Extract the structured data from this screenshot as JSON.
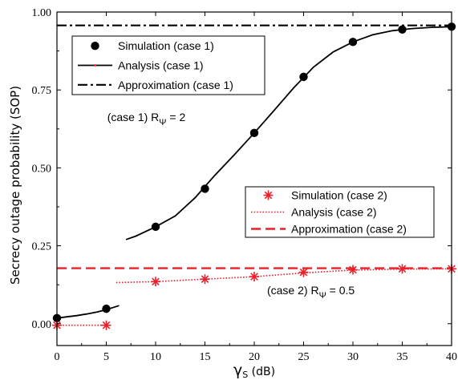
{
  "chart_data": {
    "type": "line",
    "xlabel": "γ",
    "xlabel_sub": "S",
    "xlabel_unit": " (dB)",
    "ylabel": "Secrecy outage probability (SOP)",
    "xlim": [
      0,
      40
    ],
    "ylim": [
      -0.07,
      1.0
    ],
    "xticks": [
      0,
      5,
      10,
      15,
      20,
      25,
      30,
      35,
      40
    ],
    "xtick_labels": [
      "0",
      "5",
      "10",
      "15",
      "20",
      "25",
      "30",
      "35",
      "40"
    ],
    "yticks": [
      0.0,
      0.25,
      0.5,
      0.75,
      1.0
    ],
    "ytick_labels": [
      "0.00",
      "0.25",
      "0.50",
      "0.75",
      "1.00"
    ],
    "grid": false,
    "series": [
      {
        "name": "Simulation (case 1)",
        "style": "markers-circle",
        "color": "#000000",
        "x": [
          0,
          5,
          10,
          15,
          20,
          25,
          30,
          35,
          40
        ],
        "y": [
          0.018,
          0.048,
          0.311,
          0.433,
          0.612,
          0.792,
          0.904,
          0.944,
          0.953
        ]
      },
      {
        "name": "Analysis (case 1)",
        "style": "solid",
        "color": "#000000",
        "segments": [
          {
            "x": [
              0,
              1,
              2,
              3,
              4,
              5,
              6.3
            ],
            "y": [
              0.018,
              0.022,
              0.026,
              0.031,
              0.037,
              0.045,
              0.058
            ]
          },
          {
            "x": [
              7,
              8,
              10,
              12,
              14,
              16,
              18,
              20,
              22,
              24,
              26,
              28,
              30,
              32,
              34,
              36,
              38,
              40
            ],
            "y": [
              0.27,
              0.281,
              0.311,
              0.346,
              0.404,
              0.476,
              0.543,
              0.612,
              0.684,
              0.757,
              0.823,
              0.872,
              0.904,
              0.927,
              0.94,
              0.947,
              0.951,
              0.953
            ]
          }
        ]
      },
      {
        "name": "Approximation (case 1)",
        "style": "dash-dot",
        "color": "#000000",
        "x": [
          0,
          40
        ],
        "y": [
          0.957,
          0.957
        ]
      },
      {
        "name": "Simulation (case 2)",
        "style": "markers-asterisk",
        "color": "#e8202a",
        "x": [
          0,
          5,
          10,
          15,
          20,
          25,
          30,
          35,
          40
        ],
        "y": [
          -0.005,
          -0.005,
          0.135,
          0.143,
          0.151,
          0.165,
          0.173,
          0.176,
          0.176
        ]
      },
      {
        "name": "Analysis (case 2)",
        "style": "dotted",
        "color": "#e8202a",
        "segments": [
          {
            "x": [
              0,
              5
            ],
            "y": [
              -0.005,
              -0.005
            ]
          },
          {
            "x": [
              6,
              10,
              15,
              20,
              25,
              30,
              35,
              40
            ],
            "y": [
              0.132,
              0.135,
              0.143,
              0.151,
              0.163,
              0.172,
              0.175,
              0.176
            ]
          }
        ]
      },
      {
        "name": "Approximation (case 2)",
        "style": "dashed",
        "color": "#e8202a",
        "x": [
          0,
          40
        ],
        "y": [
          0.178,
          0.178
        ]
      }
    ],
    "legends": [
      {
        "placement": "top-left",
        "entries": [
          "Simulation (case 1)",
          "Analysis (case 1)",
          "Approximation (case 1)"
        ]
      },
      {
        "placement": "middle-right",
        "entries": [
          "Simulation (case 2)",
          "Analysis (case 2)",
          "Approximation (case 2)"
        ]
      }
    ],
    "annotations": [
      {
        "text": "(case 1) R",
        "sub": "Ψ",
        "suffix": " = 2",
        "x": 5.1,
        "y": 0.65
      },
      {
        "text": "(case 2) R",
        "sub": "Ψ",
        "suffix": " = 0.5",
        "x": 21.3,
        "y": 0.095
      }
    ]
  }
}
